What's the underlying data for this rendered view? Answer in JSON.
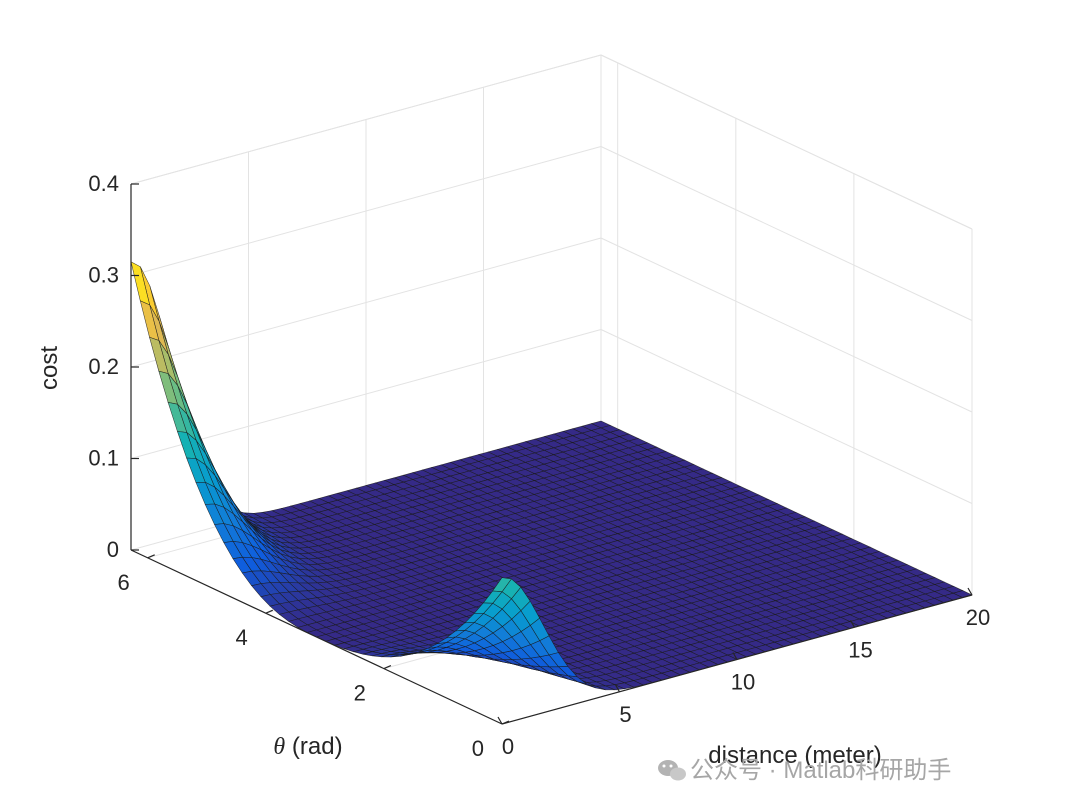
{
  "chart_data": {
    "type": "surface",
    "title": "",
    "xlabel": "distance (meter)",
    "ylabel_prefix": "θ",
    "ylabel_suffix": " (rad)",
    "zlabel": "cost",
    "xlim": [
      0,
      20
    ],
    "ylim": [
      0,
      6.283
    ],
    "zlim": [
      0,
      0.4
    ],
    "x_ticks": [
      "0",
      "5",
      "10",
      "15",
      "20"
    ],
    "y_ticks": [
      "0",
      "2",
      "4",
      "6"
    ],
    "z_ticks": [
      "0",
      "0.1",
      "0.2",
      "0.3",
      "0.4"
    ],
    "grid": true,
    "colormap": "parula",
    "surface_samples": {
      "distance_at_theta_max": [
        0,
        1,
        2,
        3,
        4,
        5,
        6,
        8,
        10,
        20
      ],
      "cost_at_theta_max": [
        0.315,
        0.27,
        0.16,
        0.07,
        0.025,
        0.008,
        0.002,
        0.0,
        0.0,
        0.0
      ],
      "theta_at_distance_zero": [
        0,
        1,
        2,
        3,
        3.14,
        4,
        5,
        6.283
      ],
      "cost_at_distance_zero": [
        0.16,
        0.1,
        0.03,
        0.005,
        0.0,
        0.005,
        0.05,
        0.315
      ],
      "peak_front": {
        "distance": 0,
        "theta": 0,
        "cost": 0.16
      },
      "peak_back": {
        "distance": 0,
        "theta": 6.283,
        "cost": 0.315
      }
    }
  },
  "watermark": {
    "text": "公众号 · Matlab科研助手",
    "icon": "wechat-icon"
  }
}
